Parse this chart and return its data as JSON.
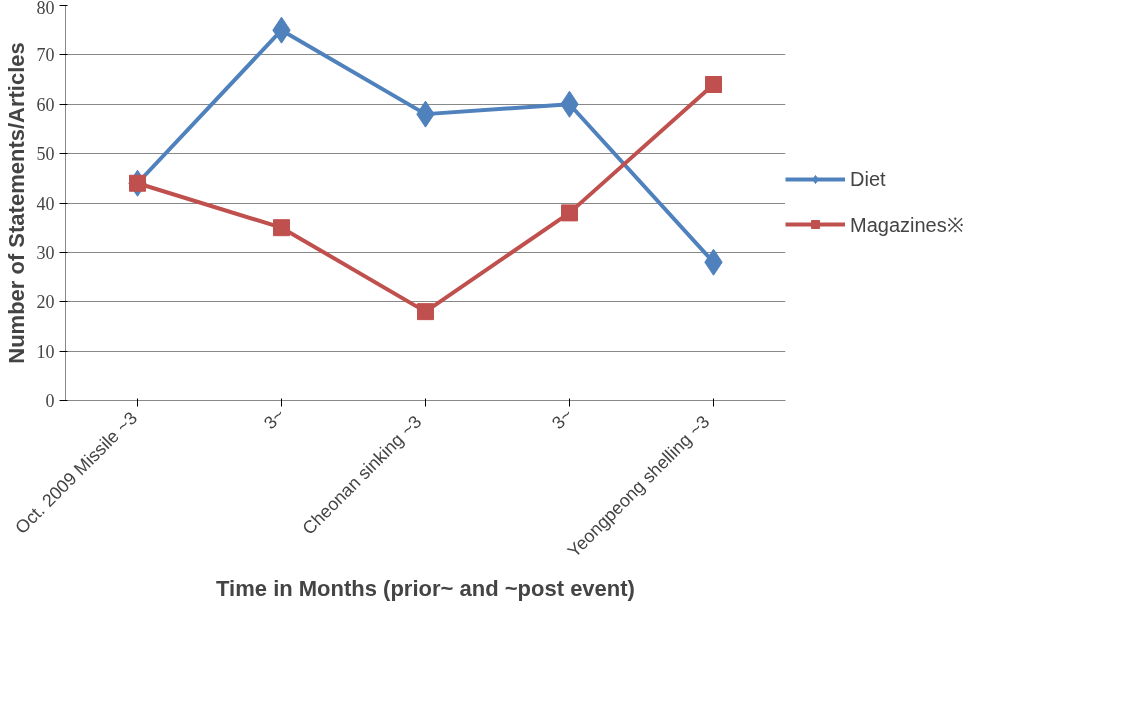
{
  "chart_data": {
    "type": "line",
    "xlabel": "Time in Months (prior~ and ~post event)",
    "ylabel": "Number of Statements/Articles",
    "categories": [
      "Oct. 2009 Missile  ~3",
      "3~",
      "Cheonan sinking   ~3",
      "3~",
      "Yeongpeong shelling   ~3"
    ],
    "series": [
      {
        "name": "Diet",
        "color": "#4f81bd",
        "marker": "diamond",
        "values": [
          44,
          75,
          58,
          60,
          28
        ]
      },
      {
        "name": "Magazines※",
        "color": "#c0504d",
        "marker": "square",
        "values": [
          44,
          35,
          18,
          38,
          64
        ]
      }
    ],
    "ylim": [
      0,
      80
    ],
    "yticks": [
      0,
      10,
      20,
      30,
      40,
      50,
      60,
      70,
      80
    ],
    "grid": "y",
    "legend": "right",
    "line_style": "solid"
  }
}
